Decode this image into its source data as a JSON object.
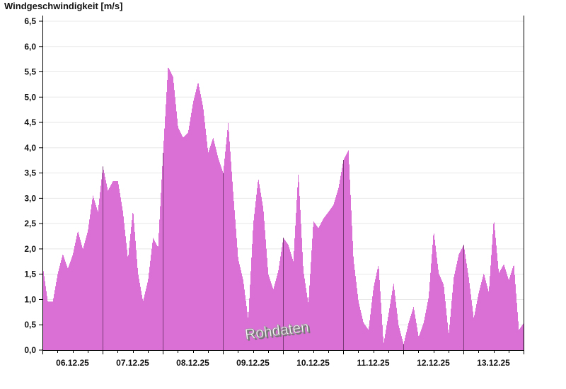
{
  "chart_data": {
    "type": "area",
    "title": "Windgeschwindigkeit [m/s]",
    "xlabel": "",
    "ylabel": "",
    "ylim": [
      0,
      6.5
    ],
    "y_ticks": [
      "0,0",
      "0,5",
      "1,0",
      "1,5",
      "2,0",
      "2,5",
      "3,0",
      "3,5",
      "4,0",
      "4,5",
      "5,0",
      "5,5",
      "6,0",
      "6,5"
    ],
    "x_tick_labels": [
      "06.12.25",
      "07.12.25",
      "08.12.25",
      "09.12.25",
      "10.12.25",
      "11.12.25",
      "12.12.25",
      "13.12.25"
    ],
    "grid": true,
    "color": "#da70d6",
    "day_line_color": "#7a3a78",
    "watermark": "Rohdaten",
    "sample_interval_hours": 2,
    "start": "06.12.25 00:00",
    "series": [
      {
        "values": [
          1.66,
          0.96,
          0.96,
          1.52,
          1.9,
          1.61,
          1.89,
          2.36,
          1.99,
          2.36,
          3.06,
          2.73,
          3.63,
          3.15,
          3.34,
          3.34,
          2.73,
          1.8,
          2.78,
          1.52,
          0.96,
          1.38,
          2.22,
          2.03,
          3.9,
          5.6,
          5.4,
          4.4,
          4.2,
          4.3,
          4.9,
          5.3,
          4.8,
          3.9,
          4.2,
          3.8,
          3.5,
          4.5,
          3.1,
          1.8,
          1.38,
          0.6,
          2.5,
          3.4,
          2.8,
          1.5,
          1.2,
          1.57,
          2.22,
          2.08,
          1.75,
          3.53,
          1.57,
          0.91,
          2.55,
          2.41,
          2.6,
          2.73,
          2.87,
          3.2,
          3.76,
          3.95,
          1.8,
          0.96,
          0.54,
          0.4,
          1.24,
          1.7,
          0.12,
          0.72,
          1.33,
          0.49,
          0.12,
          0.54,
          0.86,
          0.26,
          0.54,
          1.05,
          2.36,
          1.52,
          1.29,
          0.3,
          1.43,
          1.89,
          2.08,
          1.43,
          0.63,
          1.14,
          1.52,
          1.14,
          2.6,
          1.52,
          1.7,
          1.38,
          1.7,
          0.4,
          0.54
        ]
      }
    ]
  }
}
